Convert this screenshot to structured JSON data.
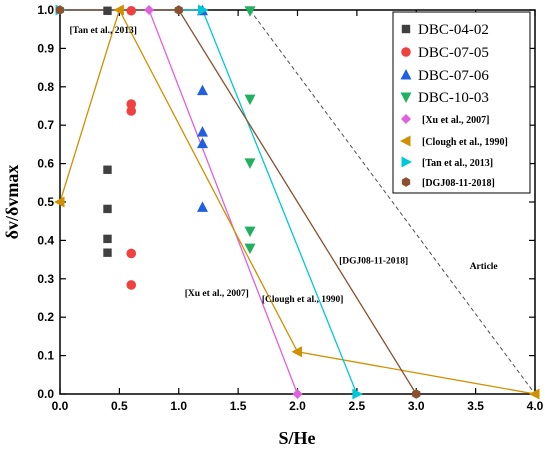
{
  "chart_data": {
    "type": "scatter",
    "xlabel": "S/He",
    "ylabel": "δv/δvmax",
    "xlim": [
      0,
      4
    ],
    "ylim": [
      0,
      1
    ],
    "x_ticks": [
      "0.0",
      "0.5",
      "1.0",
      "1.5",
      "2.0",
      "2.5",
      "3.0",
      "3.5",
      "4.0"
    ],
    "y_ticks": [
      "0.0",
      "0.1",
      "0.2",
      "0.3",
      "0.4",
      "0.5",
      "0.6",
      "0.7",
      "0.8",
      "0.9",
      "1.0"
    ],
    "legend_position": "top-right",
    "series": [
      {
        "name": "DBC-04-02",
        "kind": "points",
        "marker": "square",
        "color": "#404040",
        "points": [
          [
            0.4,
            0.998
          ],
          [
            0.4,
            0.584
          ],
          [
            0.4,
            0.482
          ],
          [
            0.4,
            0.404
          ],
          [
            0.4,
            0.368
          ]
        ]
      },
      {
        "name": "DBC-07-05",
        "kind": "points",
        "marker": "circle",
        "color": "#f04040",
        "points": [
          [
            0.6,
            0.998
          ],
          [
            0.6,
            0.755
          ],
          [
            0.6,
            0.737
          ],
          [
            0.6,
            0.366
          ],
          [
            0.6,
            0.284
          ]
        ]
      },
      {
        "name": "DBC-07-06",
        "kind": "points",
        "marker": "triangle-up",
        "color": "#2060e0",
        "points": [
          [
            1.2,
            0.998
          ],
          [
            1.2,
            0.79
          ],
          [
            1.2,
            0.682
          ],
          [
            1.2,
            0.652
          ],
          [
            1.2,
            0.486
          ]
        ]
      },
      {
        "name": "DBC-10-03",
        "kind": "points",
        "marker": "triangle-down",
        "color": "#20b060",
        "points": [
          [
            1.6,
            0.998
          ],
          [
            1.6,
            0.768
          ],
          [
            1.6,
            0.602
          ],
          [
            1.6,
            0.424
          ],
          [
            1.6,
            0.38
          ]
        ]
      },
      {
        "name": "[Xu et al., 2007]",
        "kind": "line",
        "marker": "diamond",
        "color": "#e060e0",
        "points": [
          [
            0,
            1.0
          ],
          [
            0.75,
            1.0
          ],
          [
            2.0,
            0.0
          ]
        ]
      },
      {
        "name": "[Clough et al., 1990]",
        "kind": "line",
        "marker": "triangle-left",
        "color": "#d09000",
        "points": [
          [
            0,
            0.5
          ],
          [
            0.5,
            1.0
          ],
          [
            2.0,
            0.11
          ],
          [
            4.0,
            0.0
          ]
        ]
      },
      {
        "name": "[Tan et al., 2013]",
        "kind": "line",
        "marker": "triangle-right",
        "color": "#00c8d8",
        "points": [
          [
            0,
            1.0
          ],
          [
            1.2,
            1.0
          ],
          [
            2.5,
            0.0
          ]
        ]
      },
      {
        "name": "[DGJ08-11-2018]",
        "kind": "line",
        "marker": "hexagon",
        "color": "#8a5030",
        "points": [
          [
            0,
            1.0
          ],
          [
            1.0,
            1.0
          ],
          [
            3.0,
            0.0
          ]
        ]
      },
      {
        "name": "Article",
        "kind": "dashed",
        "color": "#505050",
        "points": [
          [
            1.6,
            1.0
          ],
          [
            4.0,
            0.0
          ]
        ]
      }
    ],
    "annotations": [
      {
        "text": "[Tan et al., 2013]",
        "x": 0.08,
        "y": 0.94
      },
      {
        "text": "[DGJ08-11-2018]",
        "x": 2.35,
        "y": 0.34
      },
      {
        "text": "Article",
        "x": 3.45,
        "y": 0.325
      },
      {
        "text": "[Xu et al., 2007]",
        "x": 1.05,
        "y": 0.255
      },
      {
        "text": "[Clough et al., 1990]",
        "x": 1.7,
        "y": 0.24
      }
    ]
  }
}
